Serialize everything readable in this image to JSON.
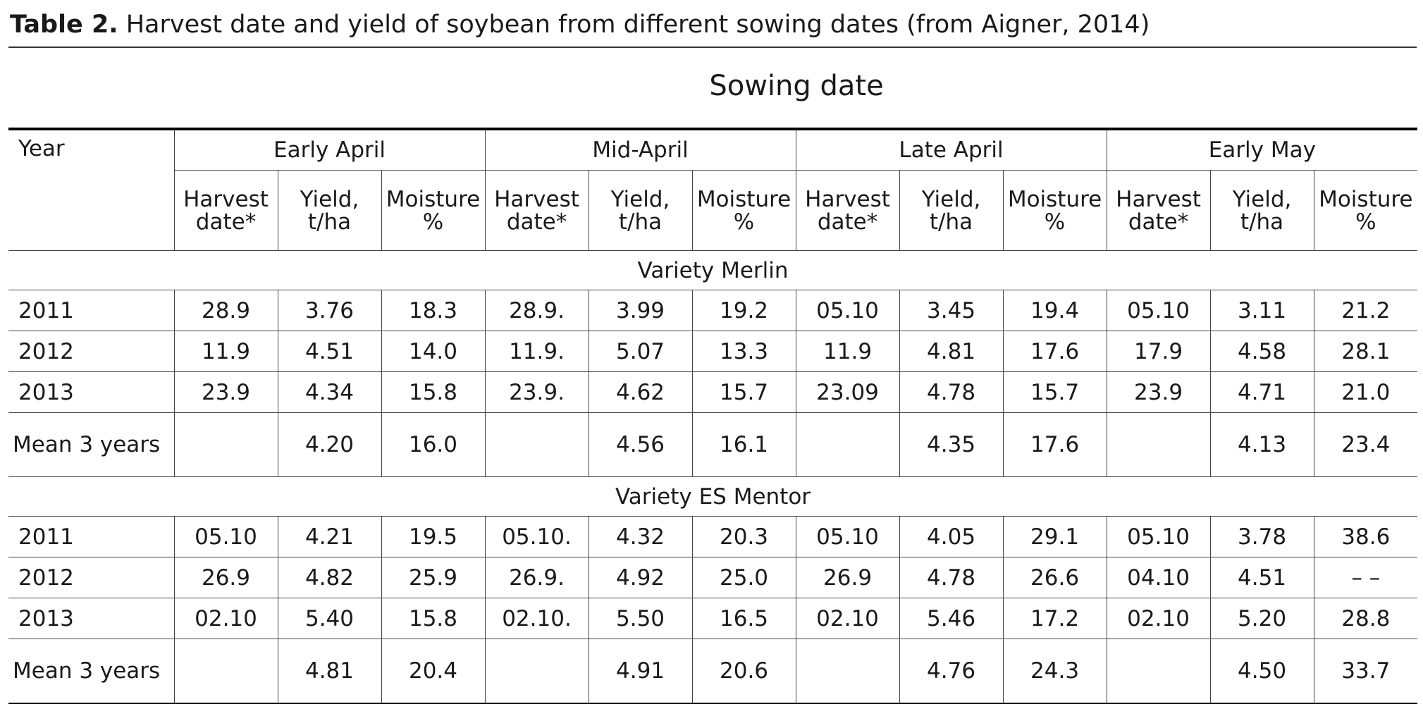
{
  "caption": {
    "label": "Table 2.",
    "text": " Harvest date and yield of soybean from different sowing dates (from Aigner, 2014)"
  },
  "sowing_date_title": "Sowing date",
  "header": {
    "year": "Year",
    "periods": [
      "Early April",
      "Mid-April",
      "Late April",
      "Early May"
    ],
    "sub": {
      "harvest": [
        "Harvest",
        "date*"
      ],
      "yield": [
        "Yield,",
        "t/ha"
      ],
      "moisture": [
        "Moisture",
        "%"
      ]
    }
  },
  "sections": [
    {
      "title": "Variety Merlin",
      "rows": [
        {
          "year": "2011",
          "cells": [
            "28.9",
            "3.76",
            "18.3",
            "28.9.",
            "3.99",
            "19.2",
            "05.10",
            "3.45",
            "19.4",
            "05.10",
            "3.11",
            "21.2"
          ]
        },
        {
          "year": "2012",
          "cells": [
            "11.9",
            "4.51",
            "14.0",
            "11.9.",
            "5.07",
            "13.3",
            "11.9",
            "4.81",
            "17.6",
            "17.9",
            "4.58",
            "28.1"
          ]
        },
        {
          "year": "2013",
          "cells": [
            "23.9",
            "4.34",
            "15.8",
            "23.9.",
            "4.62",
            "15.7",
            "23.09",
            "4.78",
            "15.7",
            "23.9",
            "4.71",
            "21.0"
          ]
        }
      ],
      "mean": {
        "label": "Mean 3 years",
        "cells": [
          "",
          "4.20",
          "16.0",
          "",
          "4.56",
          "16.1",
          "",
          "4.35",
          "17.6",
          "",
          "4.13",
          "23.4"
        ]
      }
    },
    {
      "title": "Variety ES Mentor",
      "rows": [
        {
          "year": "2011",
          "cells": [
            "05.10",
            "4.21",
            "19.5",
            "05.10.",
            "4.32",
            "20.3",
            "05.10",
            "4.05",
            "29.1",
            "05.10",
            "3.78",
            "38.6"
          ]
        },
        {
          "year": "2012",
          "cells": [
            "26.9",
            "4.82",
            "25.9",
            "26.9.",
            "4.92",
            "25.0",
            "26.9",
            "4.78",
            "26.6",
            "04.10",
            "4.51",
            "– –"
          ]
        },
        {
          "year": "2013",
          "cells": [
            "02.10",
            "5.40",
            "15.8",
            "02.10.",
            "5.50",
            "16.5",
            "02.10",
            "5.46",
            "17.2",
            "02.10",
            "5.20",
            "28.8"
          ]
        }
      ],
      "mean": {
        "label": "Mean 3 years",
        "cells": [
          "",
          "4.81",
          "20.4",
          "",
          "4.91",
          "20.6",
          "",
          "4.76",
          "24.3",
          "",
          "4.50",
          "33.7"
        ]
      }
    }
  ]
}
